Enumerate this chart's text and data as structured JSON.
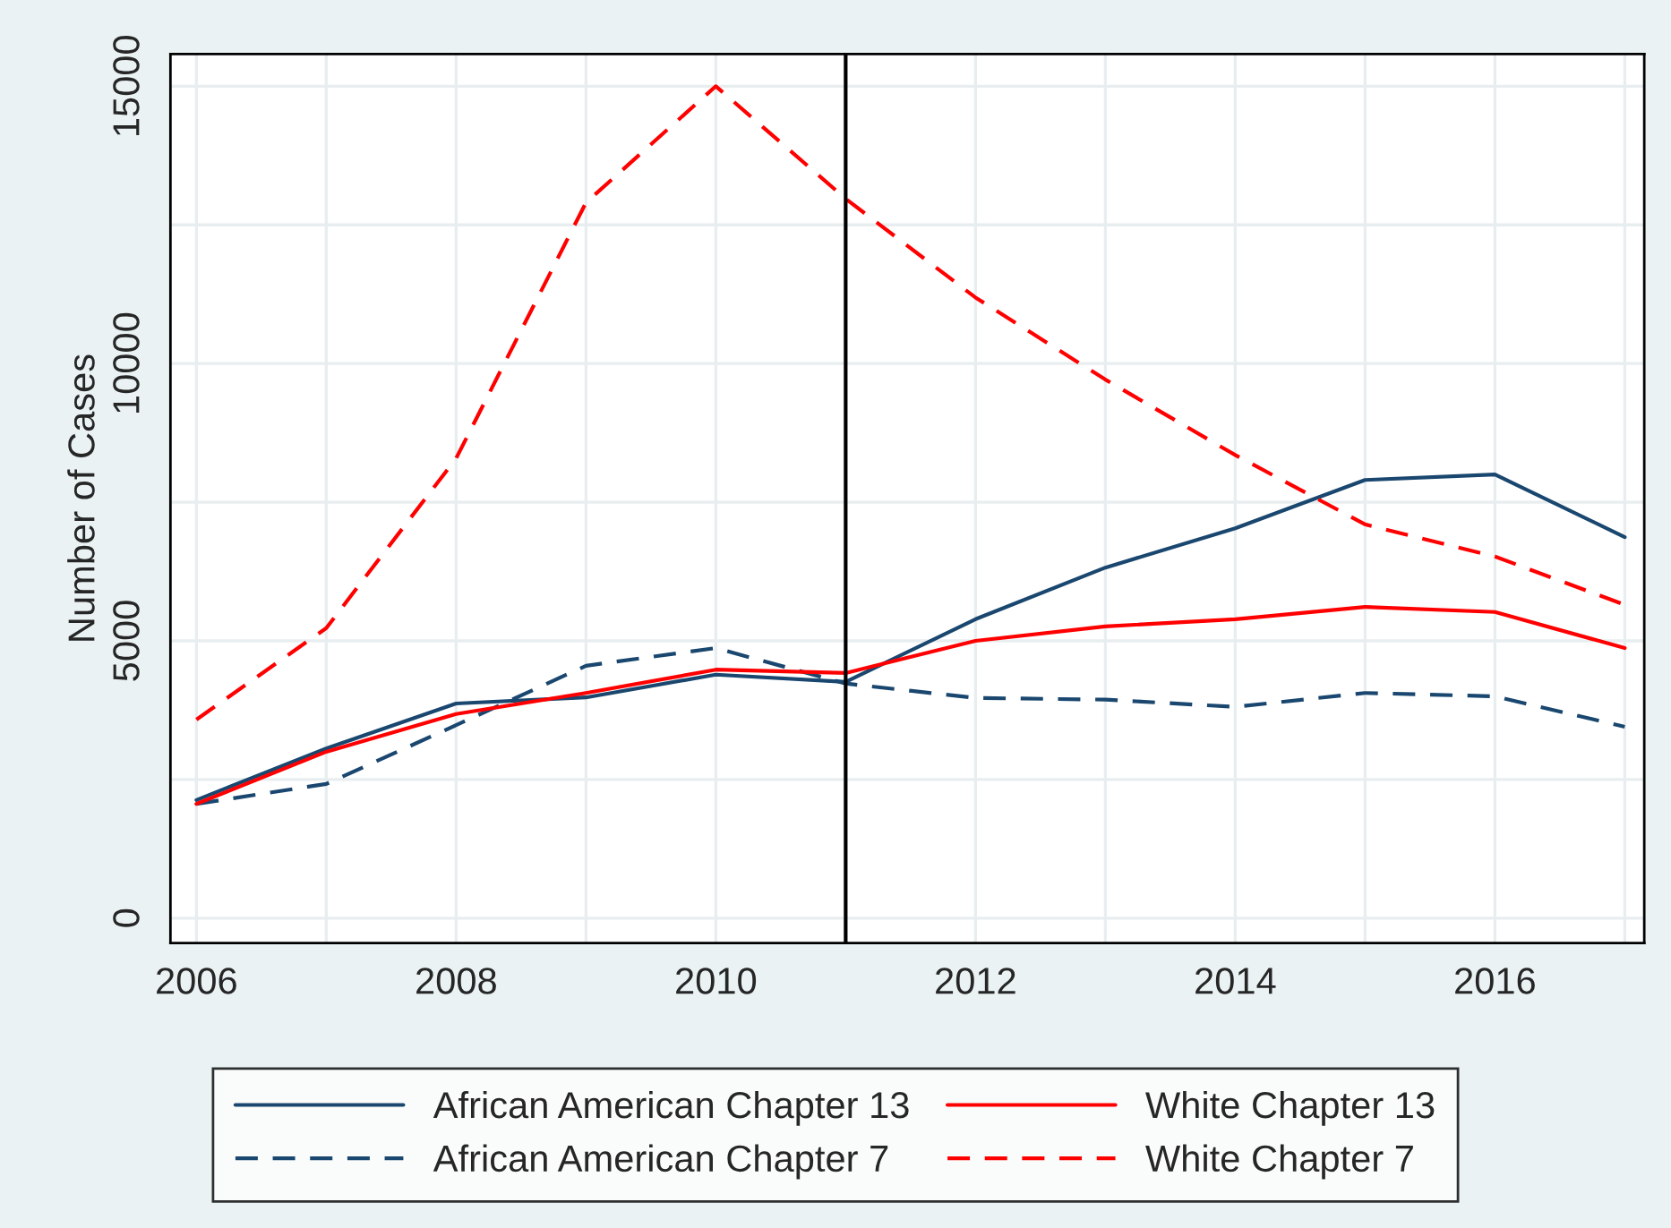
{
  "chart_data": {
    "type": "line",
    "ylabel": "Number of Cases",
    "x": [
      2006,
      2007,
      2008,
      2009,
      2010,
      2011,
      2012,
      2013,
      2014,
      2015,
      2016,
      2017
    ],
    "series": [
      {
        "name": "African American Chapter 13",
        "color": "#1a476f",
        "line_style": "solid",
        "values": [
          2130,
          3060,
          3870,
          3980,
          4390,
          4260,
          5390,
          6320,
          7030,
          7900,
          8000,
          6870
        ]
      },
      {
        "name": "African American Chapter 7",
        "color": "#1a476f",
        "line_style": "dashed",
        "values": [
          2060,
          2420,
          3480,
          4550,
          4870,
          4230,
          3970,
          3940,
          3810,
          4060,
          4000,
          3450
        ]
      },
      {
        "name": "White Chapter 13",
        "color": "#ff0000",
        "line_style": "solid",
        "values": [
          2060,
          3000,
          3680,
          4060,
          4480,
          4420,
          5000,
          5260,
          5390,
          5610,
          5520,
          4870
        ]
      },
      {
        "name": "White Chapter 7",
        "color": "#ff0000",
        "line_style": "dashed",
        "values": [
          3580,
          5230,
          8290,
          12900,
          15000,
          12970,
          11190,
          9710,
          8350,
          7100,
          6520,
          5650
        ]
      }
    ],
    "xlim": [
      2005.8,
      2017.15
    ],
    "xticks": [
      2006,
      {
        "value": 2007,
        "label": null
      },
      2008,
      {
        "value": 2009,
        "label": null
      },
      2010,
      {
        "value": 2011,
        "label": null
      },
      2012,
      {
        "value": 2013,
        "label": null
      },
      2014,
      {
        "value": 2015,
        "label": null
      },
      2016,
      {
        "value": 2017,
        "label": null
      }
    ],
    "ylim": [
      -450,
      15580
    ],
    "yticks": [
      0,
      {
        "value": 2500,
        "label": null
      },
      5000,
      {
        "value": 7500,
        "label": null
      },
      10000,
      {
        "value": 12500,
        "label": null
      },
      15000
    ],
    "grid": true,
    "legend": "bottom",
    "marker": "none",
    "ref_lines": [
      {
        "axis": "x",
        "value": 2011,
        "color": "#000000",
        "line_style": "solid"
      }
    ]
  }
}
